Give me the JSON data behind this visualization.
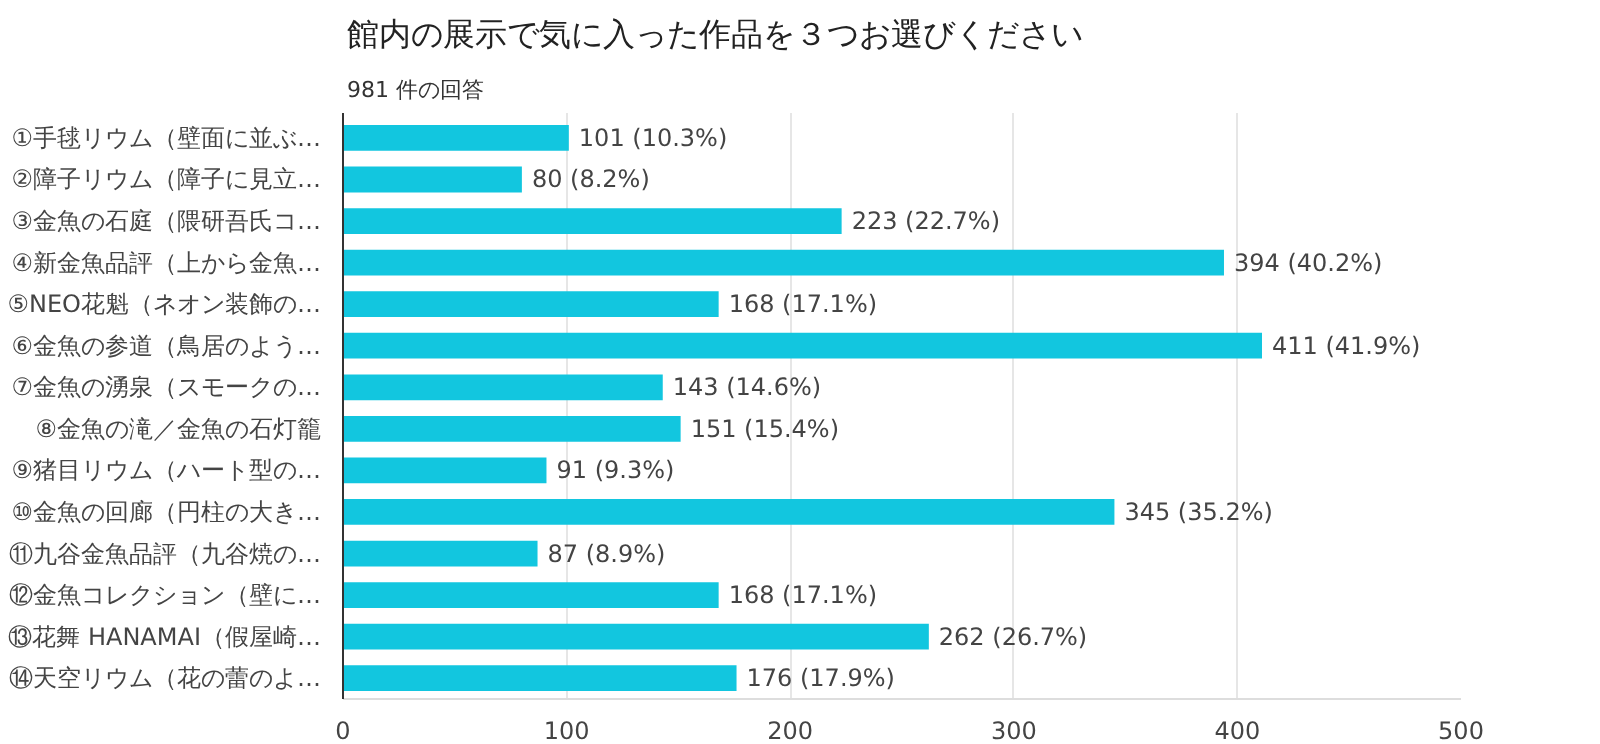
{
  "chart_data": {
    "type": "bar",
    "orientation": "horizontal",
    "title": "館内の展示で気に入った作品を３つお選びください",
    "subtitle": "981 件の回答",
    "categories": [
      "①手毬リウム（壁面に並ぶ…",
      "②障子リウム（障子に見立…",
      "③金魚の石庭（隈研吾氏コ…",
      "④新金魚品評（上から金魚…",
      "⑤NEO花魁（ネオン装飾の…",
      "⑥金魚の参道（鳥居のよう…",
      "⑦金魚の湧泉（スモークの…",
      "⑧金魚の滝／金魚の石灯籠",
      "⑨猪目リウム（ハート型の…",
      "⑩金魚の回廊（円柱の大き…",
      "⑪九谷金魚品評（九谷焼の…",
      "⑫金魚コレクション（壁に…",
      "⑬花舞 HANAMAI（假屋崎…",
      "⑭天空リウム（花の蕾のよ…"
    ],
    "values": [
      101,
      80,
      223,
      394,
      168,
      411,
      143,
      151,
      91,
      345,
      87,
      168,
      262,
      176
    ],
    "value_labels": [
      "101 (10.3%)",
      "80 (8.2%)",
      "223 (22.7%)",
      "394 (40.2%)",
      "168 (17.1%)",
      "411 (41.9%)",
      "143 (14.6%)",
      "151 (15.4%)",
      "91 (9.3%)",
      "345 (35.2%)",
      "87 (8.9%)",
      "168 (17.1%)",
      "262 (26.7%)",
      "176 (17.9%)"
    ],
    "color": "#12c6df",
    "xlim": [
      0,
      500
    ],
    "xticks": [
      0,
      100,
      200,
      300,
      400,
      500
    ],
    "grid": "x"
  }
}
